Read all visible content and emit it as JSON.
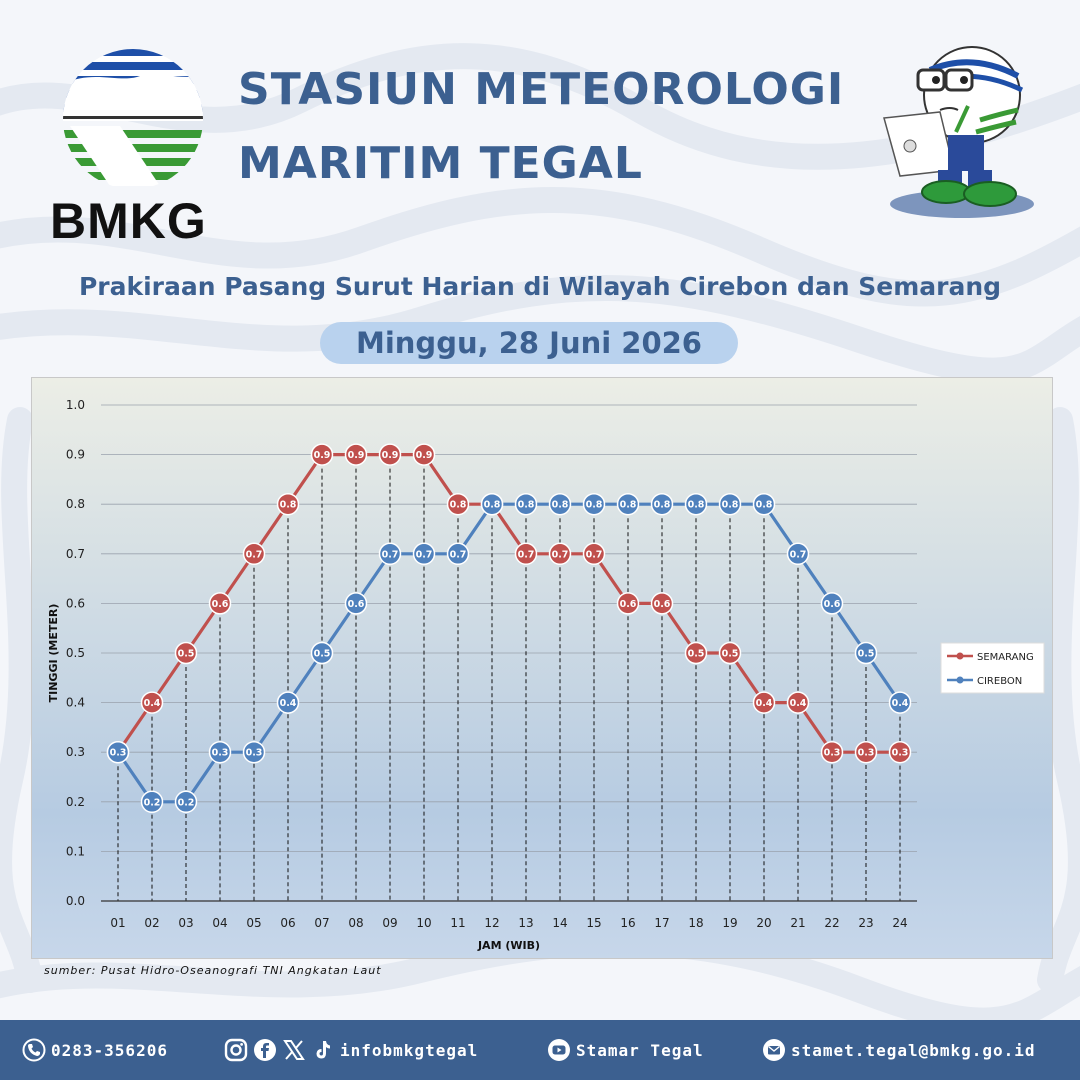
{
  "header": {
    "title_line1": "STASIUN METEOROLOGI",
    "title_line2": "MARITIM TEGAL",
    "logo_text": "BMKG",
    "subtitle": "Prakiraan Pasang Surut Harian di Wilayah Cirebon dan Semarang",
    "date": "Minggu, 28 Juni 2026"
  },
  "chart_data": {
    "type": "line",
    "title": "",
    "xlabel": "JAM (WIB)",
    "ylabel": "TINGGI (METER)",
    "ylim": [
      0,
      1.0
    ],
    "yticks": [
      "0.0",
      "0.1",
      "0.2",
      "0.3",
      "0.4",
      "0.5",
      "0.6",
      "0.7",
      "0.8",
      "0.9",
      "1.0"
    ],
    "categories": [
      "01",
      "02",
      "03",
      "04",
      "05",
      "06",
      "07",
      "08",
      "09",
      "10",
      "11",
      "12",
      "13",
      "14",
      "15",
      "16",
      "17",
      "18",
      "19",
      "20",
      "21",
      "22",
      "23",
      "24"
    ],
    "grid": true,
    "legend_position": "right",
    "series": [
      {
        "name": "SEMARANG",
        "color": "#c0504d",
        "values": [
          0.3,
          0.4,
          0.5,
          0.6,
          0.7,
          0.8,
          0.9,
          0.9,
          0.9,
          0.9,
          0.8,
          0.8,
          0.7,
          0.7,
          0.7,
          0.6,
          0.6,
          0.5,
          0.5,
          0.4,
          0.4,
          0.3,
          0.3,
          0.3
        ],
        "labels": [
          "",
          "0.4",
          "0.5",
          "0.6",
          "0.7",
          "0.8",
          "0.9",
          "0.9",
          "0.9",
          "0.9",
          "0.8",
          "",
          "0.7",
          "0.7",
          "0.7",
          "0.6",
          "0.6",
          "0.5",
          "0.5",
          "0.4",
          "0.4",
          "0.3",
          "0.3",
          "0.3"
        ]
      },
      {
        "name": "CIREBON",
        "color": "#4f81bd",
        "values": [
          0.3,
          0.2,
          0.2,
          0.3,
          0.3,
          0.4,
          0.5,
          0.6,
          0.7,
          0.7,
          0.7,
          0.8,
          0.8,
          0.8,
          0.8,
          0.8,
          0.8,
          0.8,
          0.8,
          0.8,
          0.7,
          0.6,
          0.5,
          0.4
        ],
        "labels": [
          "0.3",
          "0.2",
          "0.2",
          "0.3",
          "0.3",
          "0.4",
          "0.5",
          "0.6",
          "0.7",
          "0.7",
          "0.7",
          "0.8",
          "0.8",
          "0.8",
          "0.8",
          "0.8",
          "0.8",
          "0.8",
          "0.8",
          "0.8",
          "0.7",
          "0.6",
          "0.5",
          "0.4"
        ]
      }
    ]
  },
  "source": "sumber: Pusat Hidro-Oseanografi TNI Angkatan Laut",
  "footer": {
    "phone": "0283-356206",
    "social_handle": "infobmkgtegal",
    "youtube": "Stamar Tegal",
    "email": "stamet.tegal@bmkg.go.id"
  }
}
